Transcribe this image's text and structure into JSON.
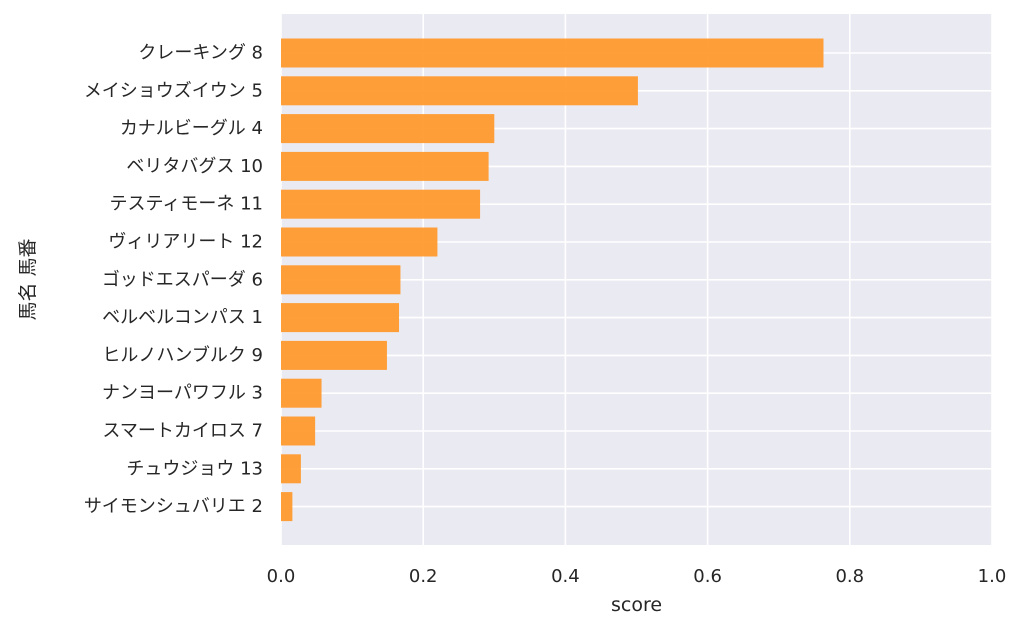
{
  "chart_data": {
    "type": "bar",
    "orientation": "horizontal",
    "xlabel": "score",
    "ylabel": "馬名 馬番",
    "xlim": [
      0.0,
      1.0
    ],
    "xticks": [
      "0.0",
      "0.2",
      "0.4",
      "0.6",
      "0.8",
      "1.0"
    ],
    "grid": true,
    "bar_color": "#ff9a2e",
    "background_color": "#eaeaf2",
    "categories": [
      "クレーキング 8",
      "メイショウズイウン 5",
      "カナルビーグル 4",
      "ベリタバグス 10",
      "テスティモーネ 11",
      "ヴィリアリート 12",
      "ゴッドエスパーダ 6",
      "ベルベルコンパス 1",
      "ヒルノハンブルク 9",
      "ナンヨーパワフル 3",
      "スマートカイロス 7",
      "チュウジョウ 13",
      "サイモンシュバリエ 2"
    ],
    "values": [
      0.763,
      0.502,
      0.3,
      0.292,
      0.28,
      0.22,
      0.168,
      0.166,
      0.149,
      0.057,
      0.048,
      0.028,
      0.016
    ]
  }
}
